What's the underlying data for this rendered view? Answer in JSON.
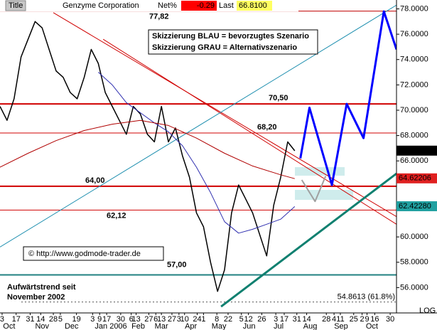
{
  "chart_data": {
    "type": "line",
    "title": "Genzyme Corporation",
    "header": {
      "title_button": "Title",
      "net_label": "Net%",
      "net_value": -0.29,
      "last_label": "Last",
      "last_value": {
        "value": 66.81,
        "label": "66.8100"
      }
    },
    "annotations": [
      "Skizzierung BLAU = bevorzugtes Szenario",
      "Skizzierung GRAU = Alternativszenario"
    ],
    "copyright": "© http://www.godmode-trader.de",
    "trend_note": [
      "Aufwärtstrend seit",
      "November 2002"
    ],
    "scale_label": "LOG",
    "xlim": [
      0,
      56.5
    ],
    "ylim": [
      54,
      78.7
    ],
    "yticks": [
      {
        "value": 56,
        "label": "56.0000"
      },
      {
        "value": 58,
        "label": "58.0000"
      },
      {
        "value": 60,
        "label": "60.0000"
      },
      {
        "value": 66,
        "label": "66.0000"
      },
      {
        "value": 68,
        "label": "68.0000"
      },
      {
        "value": 70,
        "label": "70.0000"
      },
      {
        "value": 72,
        "label": "72.0000"
      },
      {
        "value": 74,
        "label": "74.0000"
      },
      {
        "value": 76,
        "label": "76.0000"
      },
      {
        "value": 78,
        "label": "78.0000"
      }
    ],
    "xticks": [
      {
        "value": 0.3,
        "label": "3"
      },
      {
        "value": 2.3,
        "label": "17"
      },
      {
        "value": 4.3,
        "label": "31"
      },
      {
        "value": 5.8,
        "label": "14"
      },
      {
        "value": 7.6,
        "label": "28"
      },
      {
        "value": 8.6,
        "label": "5"
      },
      {
        "value": 10.9,
        "label": "19"
      },
      {
        "value": 13.2,
        "label": "3"
      },
      {
        "value": 14.2,
        "label": "9"
      },
      {
        "value": 15.2,
        "label": "17"
      },
      {
        "value": 17.2,
        "label": "30"
      },
      {
        "value": 18.7,
        "label": "6"
      },
      {
        "value": 19.4,
        "label": "13"
      },
      {
        "value": 21.2,
        "label": "27"
      },
      {
        "value": 22.2,
        "label": "6"
      },
      {
        "value": 23.0,
        "label": "13"
      },
      {
        "value": 24.5,
        "label": "27"
      },
      {
        "value": 25.5,
        "label": "3"
      },
      {
        "value": 26.3,
        "label": "10"
      },
      {
        "value": 28.1,
        "label": "24"
      },
      {
        "value": 29.0,
        "label": "1"
      },
      {
        "value": 30.9,
        "label": "8"
      },
      {
        "value": 32.5,
        "label": "22"
      },
      {
        "value": 34.4,
        "label": "5"
      },
      {
        "value": 35.4,
        "label": "12"
      },
      {
        "value": 37.3,
        "label": "26"
      },
      {
        "value": 39.3,
        "label": "3"
      },
      {
        "value": 40.5,
        "label": "17"
      },
      {
        "value": 42.3,
        "label": "31"
      },
      {
        "value": 43.7,
        "label": "14"
      },
      {
        "value": 46.5,
        "label": "28"
      },
      {
        "value": 47.6,
        "label": "4"
      },
      {
        "value": 48.5,
        "label": "11"
      },
      {
        "value": 50.4,
        "label": "25"
      },
      {
        "value": 51.6,
        "label": "2"
      },
      {
        "value": 52.3,
        "label": "9"
      },
      {
        "value": 53.4,
        "label": "16"
      },
      {
        "value": 55.6,
        "label": "30"
      }
    ],
    "months": [
      {
        "value": 1.3,
        "label": "Oct"
      },
      {
        "value": 6.0,
        "label": "Nov"
      },
      {
        "value": 10.2,
        "label": "Dec"
      },
      {
        "value": 15.8,
        "label": "Jan 2006"
      },
      {
        "value": 19.7,
        "label": "Feb"
      },
      {
        "value": 23.0,
        "label": "Mar"
      },
      {
        "value": 27.2,
        "label": "Apr"
      },
      {
        "value": 31.2,
        "label": "May"
      },
      {
        "value": 35.5,
        "label": "Jun"
      },
      {
        "value": 39.7,
        "label": "Jul"
      },
      {
        "value": 44.2,
        "label": "Aug"
      },
      {
        "value": 48.6,
        "label": "Sep"
      },
      {
        "value": 53.0,
        "label": "Oct"
      }
    ],
    "series": [
      {
        "color": "#000000",
        "width": 1.5,
        "x": [
          0,
          1,
          2,
          3,
          4,
          5,
          6,
          7,
          8,
          9,
          10,
          11,
          12,
          13,
          14,
          15,
          16,
          17,
          18,
          19,
          20,
          21,
          22,
          23,
          24,
          25,
          26,
          27,
          28,
          29,
          30,
          31,
          32,
          33,
          34,
          35,
          36,
          37,
          38,
          39,
          40,
          41,
          42
        ],
        "values": [
          70.3,
          69.2,
          70.9,
          74.2,
          75.6,
          77.0,
          76.5,
          74.8,
          73.1,
          72.6,
          71.4,
          70.9,
          72.6,
          74.8,
          73.7,
          71.4,
          70.3,
          69.2,
          68.1,
          70.3,
          69.7,
          68.1,
          67.5,
          70.3,
          67.5,
          68.6,
          66.4,
          64.7,
          61.9,
          60.8,
          58.0,
          55.7,
          57.4,
          61.9,
          64.1,
          63.0,
          61.9,
          60.2,
          58.5,
          62.5,
          64.7,
          67.5,
          66.8
        ]
      },
      {
        "color": "#3030b0",
        "width": 1,
        "x": [
          14,
          16,
          18,
          20,
          22,
          24,
          26,
          28,
          30,
          32,
          34,
          36,
          38,
          40,
          42
        ],
        "values": [
          73.0,
          72.0,
          70.6,
          69.8,
          69.0,
          68.3,
          67.2,
          65.5,
          63.5,
          61.2,
          60.3,
          60.6,
          61.0,
          61.4,
          62.4
        ]
      },
      {
        "color": "#b00000",
        "width": 1,
        "x": [
          0,
          4,
          8,
          12,
          16,
          20,
          24,
          28,
          32,
          36,
          40,
          42
        ],
        "values": [
          65.5,
          66.6,
          67.6,
          68.4,
          68.9,
          69.2,
          68.8,
          67.8,
          66.6,
          65.6,
          64.9,
          64.6
        ]
      },
      {
        "color": "#0000ff",
        "width": 3,
        "x": [
          42.8,
          44.1,
          47.3,
          49.4,
          51.8,
          54.7,
          56.5
        ],
        "values": [
          66.2,
          70.2,
          64.1,
          70.5,
          67.8,
          77.8,
          74.8
        ]
      },
      {
        "color": "#a0a0a0",
        "width": 2,
        "x": [
          43.0,
          44.9,
          46.4
        ],
        "values": [
          64.5,
          62.8,
          64.8
        ]
      }
    ],
    "levels": [
      {
        "value": 77.82,
        "label": "77,82",
        "color": "#c00000",
        "width": 1
      },
      {
        "value": 70.5,
        "label": "70,50",
        "color": "#d00000",
        "width": 2
      },
      {
        "value": 68.2,
        "label": "68,20",
        "color": "#d00000",
        "width": 1
      },
      {
        "value": 64,
        "label": "64,00",
        "color": "#d00000",
        "width": 2
      },
      {
        "value": 62.12,
        "label": "62,12",
        "color": "#d00000",
        "width": 1
      },
      {
        "value": 57,
        "label": "57,00",
        "color": "#208080",
        "width": 2
      }
    ],
    "trendlines": [
      {
        "x": [
          7.6,
          56.5
        ],
        "y": [
          77.7,
          61.6
        ],
        "color": "#d00000",
        "width": 1
      },
      {
        "x": [
          14.7,
          56.5
        ],
        "y": [
          75.6,
          61.0
        ],
        "color": "#d00000",
        "width": 1
      },
      {
        "x": [
          0,
          56.5
        ],
        "y": [
          59.2,
          78.3
        ],
        "color": "#2090b0",
        "width": 1
      },
      {
        "x": [
          31.5,
          56.5
        ],
        "y": [
          54.5,
          65.0
        ],
        "color": "#108070",
        "width": 3
      }
    ],
    "price_tags": [
      {
        "value": 66.81,
        "label": "66.8100",
        "color": "#000000"
      },
      {
        "value": 64.62206,
        "label": "64.62206",
        "color": "#e02020"
      },
      {
        "value": 62.4228,
        "label": "62.42280",
        "color": "#20a0a0"
      }
    ],
    "retracement": {
      "value": 54.8613,
      "label": "54.8613 (61.8%)",
      "color": "#2050c0"
    }
  }
}
